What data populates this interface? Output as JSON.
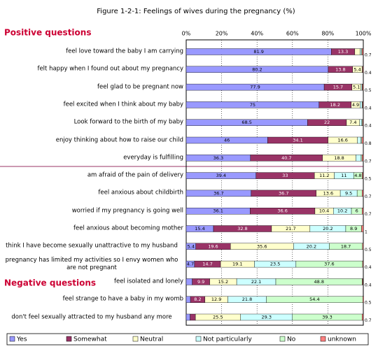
{
  "chart_data": {
    "type": "bar",
    "orientation": "horizontal",
    "stacked": true,
    "title": "Figure 1-2-1: Feelings of wives during the pregnancy (%)",
    "section_labels": [
      "Positive questions",
      "Negative questions"
    ],
    "categories": [
      "feel love toward the baby I am carrying",
      "felt happy when I found out about my pregnancy",
      "feel glad to be pregnant now",
      "feel excited when I think about my baby",
      "Look forward to the birth of my baby",
      "enjoy thinking about how to raise our child",
      "everyday is fulfilling",
      "am afraid of the pain of delivery",
      "feel anxious about childbirth",
      "worried if my pregnancy is going well",
      "feel anxious about becoming mother",
      "think I have become sexually unattractive to my husband",
      "pregnancy has limited my activities so I envy women who are not pregnant",
      "feel isolated and lonely",
      "feel strange to have a baby in my womb",
      "don't feel sexually attracted to my husband any more"
    ],
    "series": [
      {
        "name": "Yes",
        "color": "#9999ff",
        "values": [
          81.9,
          80.2,
          77.9,
          75.0,
          68.5,
          46.0,
          36.3,
          39.4,
          36.7,
          36.1,
          15.4,
          5.4,
          4.7,
          3.4,
          2.4,
          2.2
        ]
      },
      {
        "name": "Somewhat",
        "color": "#993366",
        "values": [
          13.3,
          13.8,
          15.7,
          18.2,
          22.0,
          34.1,
          40.7,
          33.0,
          36.7,
          36.6,
          32.8,
          19.6,
          14.7,
          9.9,
          8.2,
          3.0
        ]
      },
      {
        "name": "Neutral",
        "color": "#ffffcc",
        "values": [
          3.0,
          5.4,
          5.1,
          4.9,
          7.4,
          16.6,
          18.8,
          11.2,
          13.6,
          10.4,
          21.7,
          35.6,
          19.1,
          15.2,
          12.9,
          25.5
        ]
      },
      {
        "name": "Not particularly",
        "color": "#ccffff",
        "values": [
          0.7,
          0.2,
          0.6,
          1.2,
          1.3,
          2.0,
          3.0,
          11.0,
          9.5,
          10.2,
          20.2,
          20.2,
          23.5,
          22.1,
          21.8,
          29.3
        ]
      },
      {
        "name": "No",
        "color": "#ccffcc",
        "values": [
          0.4,
          0.0,
          0.2,
          0.3,
          0.4,
          0.5,
          0.5,
          4.8,
          2.8,
          6.0,
          8.9,
          18.7,
          37.6,
          48.8,
          54.4,
          39.3
        ]
      },
      {
        "name": "unknown",
        "color": "#ff8080",
        "values": [
          0.7,
          0.4,
          0.5,
          0.4,
          0.4,
          0.8,
          0.7,
          0.5,
          0.7,
          0.7,
          1.0,
          0.5,
          0.4,
          0.4,
          0.5,
          0.7
        ]
      }
    ],
    "xlim": [
      0,
      100
    ],
    "xticks": [
      {
        "value": 0,
        "label": "0%"
      },
      {
        "value": 20,
        "label": "20%"
      },
      {
        "value": 40,
        "label": "40%"
      },
      {
        "value": 60,
        "label": "60%"
      },
      {
        "value": 80,
        "label": "80%"
      },
      {
        "value": 100,
        "label": "100%"
      }
    ],
    "grid": true,
    "legend": "bottom"
  }
}
